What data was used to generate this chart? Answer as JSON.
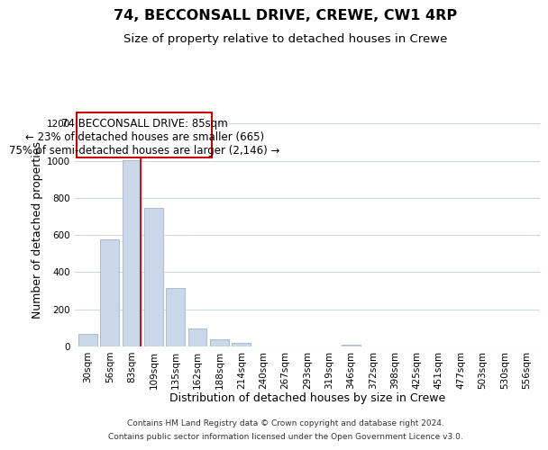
{
  "title": "74, BECCONSALL DRIVE, CREWE, CW1 4RP",
  "subtitle": "Size of property relative to detached houses in Crewe",
  "xlabel": "Distribution of detached houses by size in Crewe",
  "ylabel": "Number of detached properties",
  "bar_labels": [
    "30sqm",
    "56sqm",
    "83sqm",
    "109sqm",
    "135sqm",
    "162sqm",
    "188sqm",
    "214sqm",
    "240sqm",
    "267sqm",
    "293sqm",
    "319sqm",
    "346sqm",
    "372sqm",
    "398sqm",
    "425sqm",
    "451sqm",
    "477sqm",
    "503sqm",
    "530sqm",
    "556sqm"
  ],
  "bar_values": [
    70,
    575,
    1005,
    745,
    315,
    95,
    40,
    20,
    0,
    0,
    0,
    0,
    10,
    0,
    0,
    0,
    0,
    0,
    0,
    0,
    0
  ],
  "bar_color": "#c8d8e8",
  "bar_edge_color": "#aabcce",
  "property_line_color": "#cc0000",
  "property_line_x": 2.425,
  "annotation_line1": "74 BECCONSALL DRIVE: 85sqm",
  "annotation_line2": "← 23% of detached houses are smaller (665)",
  "annotation_line3": "75% of semi-detached houses are larger (2,146) →",
  "ylim": [
    0,
    1260
  ],
  "yticks": [
    0,
    200,
    400,
    600,
    800,
    1000,
    1200
  ],
  "footer_line1": "Contains HM Land Registry data © Crown copyright and database right 2024.",
  "footer_line2": "Contains public sector information licensed under the Open Government Licence v3.0.",
  "bg_color": "#ffffff",
  "grid_color": "#d0d8e8",
  "title_fontsize": 11.5,
  "subtitle_fontsize": 9.5,
  "axis_label_fontsize": 9,
  "tick_fontsize": 7.5,
  "annotation_fontsize": 8.5,
  "footer_fontsize": 6.5
}
